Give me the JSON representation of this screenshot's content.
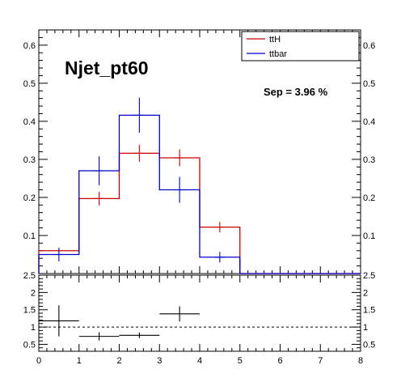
{
  "chart_data": [
    {
      "type": "step-histogram",
      "title": "Njet_pt60",
      "annotation": "Sep = 3.96 %",
      "xlim": [
        0,
        8
      ],
      "ylim": [
        0,
        0.64
      ],
      "yticks": [
        0.1,
        0.2,
        0.3,
        0.4,
        0.5,
        0.6
      ],
      "ytick_labels": [
        "0.1",
        "0.2",
        "0.3",
        "0.4",
        "0.5",
        "0.6"
      ],
      "legend_position": "top-right",
      "bin_edges": [
        0,
        1,
        2,
        3,
        4,
        5,
        6,
        7,
        8
      ],
      "series": [
        {
          "name": "ttH",
          "color": "#cc0000",
          "values": [
            0.06,
            0.197,
            0.316,
            0.304,
            0.122,
            0.0,
            0.0,
            0.0
          ],
          "errors": [
            0.0,
            0.018,
            0.022,
            0.022,
            0.014,
            0.0,
            0.0,
            0.0
          ]
        },
        {
          "name": "ttbar",
          "color": "#0000cc",
          "values": [
            0.05,
            0.27,
            0.416,
            0.22,
            0.043,
            0.0,
            0.0,
            0.0
          ],
          "errors": [
            0.018,
            0.038,
            0.046,
            0.034,
            0.014,
            0.0,
            0.0,
            0.0
          ]
        }
      ]
    },
    {
      "type": "scatter-errorbar",
      "xlim": [
        0,
        8
      ],
      "ylim": [
        0.3,
        2.5
      ],
      "reference_line": 1.0,
      "xticks": [
        0,
        1,
        2,
        3,
        4,
        5,
        6,
        7,
        8
      ],
      "xtick_labels": [
        "0",
        "1",
        "2",
        "3",
        "4",
        "5",
        "6",
        "7",
        "8"
      ],
      "yticks": [
        0.5,
        1,
        1.5,
        2,
        2.5
      ],
      "ytick_labels": [
        "0.5",
        "1",
        "1.5",
        "2",
        "2.5"
      ],
      "points": [
        {
          "x": 0.5,
          "y": 1.18,
          "xerr": 0.5,
          "yerr": 0.45
        },
        {
          "x": 1.5,
          "y": 0.73,
          "xerr": 0.5,
          "yerr": 0.12
        },
        {
          "x": 2.5,
          "y": 0.76,
          "xerr": 0.5,
          "yerr": 0.08
        },
        {
          "x": 3.5,
          "y": 1.38,
          "xerr": 0.5,
          "yerr": 0.22
        }
      ]
    }
  ]
}
